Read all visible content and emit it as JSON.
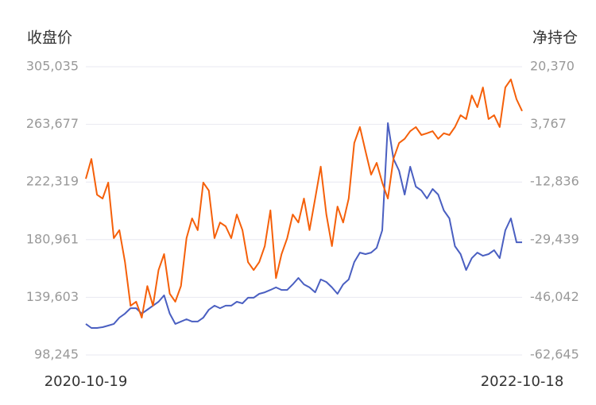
{
  "chart_data": {
    "type": "line",
    "y_label": "收盘价",
    "y2_label": "净持仓",
    "categories": [
      "2020-10-19",
      null,
      null,
      null,
      null,
      null,
      null,
      null,
      null,
      null,
      null,
      null,
      null,
      null,
      null,
      null,
      null,
      null,
      null,
      null,
      null,
      null,
      null,
      null,
      null,
      null,
      null,
      null,
      null,
      null,
      null,
      null,
      null,
      null,
      null,
      null,
      null,
      null,
      null,
      null,
      null,
      null,
      null,
      null,
      null,
      null,
      null,
      null,
      null,
      null,
      null,
      null,
      null,
      null,
      null,
      null,
      null,
      null,
      null,
      null,
      null,
      null,
      null,
      null,
      null,
      null,
      null,
      null,
      null,
      null,
      null,
      null,
      null,
      null,
      null,
      null,
      null,
      null,
      "2022-10-18"
    ],
    "series": [
      {
        "name": "收盘价",
        "color": "#4a5fc1",
        "axis": "y",
        "values": [
          120500,
          117600,
          117600,
          118200,
          119300,
          120500,
          125000,
          127900,
          131800,
          131800,
          127900,
          130700,
          133600,
          136400,
          141000,
          127900,
          120500,
          122200,
          123900,
          122200,
          122200,
          125000,
          130700,
          133600,
          131800,
          133600,
          133600,
          136400,
          135300,
          139300,
          139300,
          142100,
          143200,
          144900,
          146700,
          144900,
          144900,
          148900,
          153500,
          148900,
          146700,
          143200,
          152400,
          150600,
          146700,
          142100,
          148900,
          152400,
          164900,
          171700,
          170600,
          171700,
          175100,
          187700,
          264600,
          239000,
          230400,
          213300,
          233300,
          219000,
          216200,
          210500,
          217300,
          213300,
          201900,
          196200,
          176300,
          170600,
          159200,
          167700,
          171700,
          169400,
          170600,
          173400,
          167700,
          187700,
          196200,
          179100,
          179100
        ]
      },
      {
        "name": "净持仓",
        "color": "#f5600a",
        "axis": "y2",
        "values": [
          -11900,
          -6200,
          -16500,
          -17600,
          -13000,
          -29000,
          -26700,
          -35900,
          -48500,
          -47300,
          -51900,
          -42800,
          -48500,
          -38200,
          -33600,
          -45000,
          -47300,
          -42800,
          -29000,
          -23300,
          -26700,
          -13000,
          -15300,
          -29000,
          -24500,
          -25600,
          -29000,
          -22200,
          -26700,
          -35900,
          -38200,
          -35900,
          -31300,
          -21000,
          -40500,
          -33600,
          -29000,
          -22200,
          -24500,
          -17600,
          -26700,
          -17600,
          -8400,
          -22200,
          -31300,
          -19900,
          -24500,
          -17600,
          -1600,
          3000,
          -3900,
          -10700,
          -7300,
          -13000,
          -17600,
          -6200,
          -1600,
          -400,
          1800,
          3000,
          700,
          1200,
          1800,
          -400,
          1200,
          700,
          3000,
          6400,
          5300,
          12100,
          8700,
          14400,
          5300,
          6400,
          3000,
          14400,
          16700,
          11000,
          7600
        ]
      }
    ],
    "ylim": [
      98245,
      305035
    ],
    "yticks": [
      {
        "value": 98245,
        "label": "98,245"
      },
      {
        "value": 139603,
        "label": "139,603"
      },
      {
        "value": 180961,
        "label": "180,961"
      },
      {
        "value": 222319,
        "label": "222,319"
      },
      {
        "value": 263677,
        "label": "263,677"
      },
      {
        "value": 305035,
        "label": "305,035"
      }
    ],
    "y2lim": [
      -62645,
      20370
    ],
    "y2ticks": [
      {
        "value": -62645,
        "label": "-62,645"
      },
      {
        "value": -46042,
        "label": "-46,042"
      },
      {
        "value": -29439,
        "label": "-29,439"
      },
      {
        "value": -12836,
        "label": "-12,836"
      },
      {
        "value": 3767,
        "label": "3,767"
      },
      {
        "value": 20370,
        "label": "20,370"
      }
    ],
    "grid": true
  }
}
